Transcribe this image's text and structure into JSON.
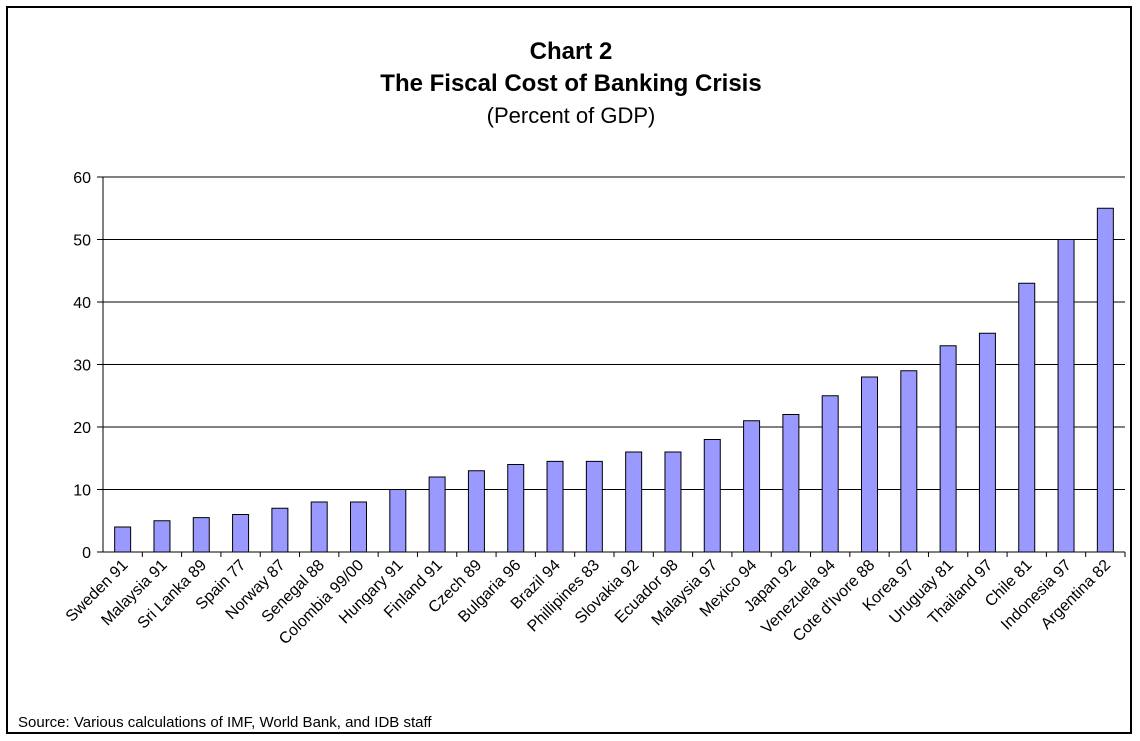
{
  "chart_data": {
    "type": "bar",
    "title": "Chart 2",
    "subtitle": "The Fiscal Cost of Banking Crisis",
    "unit": "(Percent of GDP)",
    "xlabel": "",
    "ylabel": "",
    "ylim": [
      0,
      60
    ],
    "yticks": [
      0,
      10,
      20,
      30,
      40,
      50,
      60
    ],
    "grid": true,
    "legend": "none",
    "categories": [
      "Sweden 91",
      "Malaysia 91",
      "Sri Lanka 89",
      "Spain 77",
      "Norway 87",
      "Senegal 88",
      "Colombia 99/00",
      "Hungary 91",
      "Finland 91",
      "Czech 89",
      "Bulgaria 96",
      "Brazil 94",
      "Phillipines 83",
      "Slovakia 92",
      "Ecuador 98",
      "Malaysia 97",
      "Mexico 94",
      "Japan 92",
      "Venezuela 94",
      "Cote d'Ivore 88",
      "Korea 97",
      "Uruguay 81",
      "Thailand 97",
      "Chile 81",
      "Indonesia 97",
      "Argentina 82"
    ],
    "values": [
      4,
      5,
      5.5,
      6,
      7,
      8,
      8,
      10,
      12,
      13,
      14,
      14.5,
      14.5,
      16,
      16,
      18,
      21,
      22,
      25,
      28,
      29,
      33,
      35,
      43,
      50,
      55
    ],
    "colors": {
      "bar_fill": "#9999ff",
      "bar_stroke": "#000000",
      "grid": "#000000"
    }
  },
  "source": "Source: Various calculations of IMF, World Bank, and IDB staff"
}
